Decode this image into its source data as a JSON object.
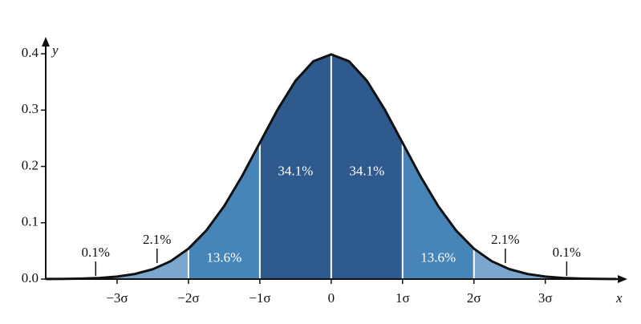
{
  "chart_data": {
    "type": "area",
    "x_label": "x",
    "y_label": "y",
    "xlim": [
      -4,
      4.15
    ],
    "ylim": [
      0,
      0.43
    ],
    "xticks": [
      {
        "value": -3,
        "label": "−3σ"
      },
      {
        "value": -2,
        "label": "−2σ"
      },
      {
        "value": -1,
        "label": "−1σ"
      },
      0,
      {
        "value": 1,
        "label": "1σ"
      },
      {
        "value": 2,
        "label": "2σ"
      },
      {
        "value": 3,
        "label": "3σ"
      }
    ],
    "yticks": [
      {
        "value": 0,
        "label": "0.0"
      },
      0.1,
      0.2,
      0.3,
      0.4
    ],
    "curve": {
      "x": [
        -4,
        -3.75,
        -3.5,
        -3.25,
        -3,
        -2.75,
        -2.5,
        -2.25,
        -2,
        -1.75,
        -1.5,
        -1.25,
        -1,
        -0.75,
        -0.5,
        -0.25,
        0,
        0.25,
        0.5,
        0.75,
        1,
        1.25,
        1.5,
        1.75,
        2,
        2.25,
        2.5,
        2.75,
        3,
        3.25,
        3.5,
        3.75,
        4
      ],
      "values": [
        0.0001,
        0.0004,
        0.0009,
        0.002,
        0.0044,
        0.0091,
        0.0175,
        0.0317,
        0.054,
        0.0863,
        0.1295,
        0.1826,
        0.242,
        0.3011,
        0.3521,
        0.3867,
        0.3989,
        0.3867,
        0.3521,
        0.3011,
        0.242,
        0.1826,
        0.1295,
        0.0863,
        0.054,
        0.0317,
        0.0175,
        0.0091,
        0.0044,
        0.002,
        0.0009,
        0.0004,
        0.0001
      ]
    },
    "edges": [
      -3,
      -2,
      -1,
      0,
      1,
      2,
      3
    ],
    "region_values": [
      0.1,
      2.1,
      13.6,
      34.1,
      34.1,
      13.6,
      2.1,
      0.1
    ],
    "region_value_labels": [
      "0.1%",
      "2.1%",
      "13.6%",
      "34.1%",
      "34.1%",
      "13.6%",
      "2.1%",
      "0.1%"
    ],
    "region_colors": [
      "#7ba7cf",
      "#7ba7cf",
      "#4785b9",
      "#2e5a8e",
      "#2e5a8e",
      "#4785b9",
      "#7ba7cf",
      "#7ba7cf"
    ]
  }
}
